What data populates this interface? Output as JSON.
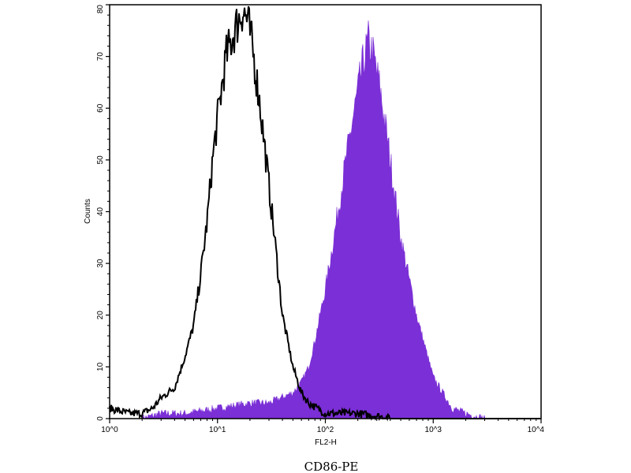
{
  "chart_data": {
    "type": "area",
    "title": "",
    "xlabel": "FL2-H",
    "ylabel": "Counts",
    "caption": "CD86-PE",
    "x_scale": "log",
    "xlim": [
      1,
      10000
    ],
    "ylim": [
      0,
      80
    ],
    "x_ticks": [
      "10^0",
      "10^1",
      "10^2",
      "10^3",
      "10^4"
    ],
    "y_ticks": [
      0,
      10,
      20,
      30,
      40,
      50,
      60,
      70,
      80
    ],
    "grid": false,
    "legend": "none",
    "series": [
      {
        "style": "line",
        "color": "#000000",
        "x": [
          1,
          1.5,
          2,
          2.5,
          3,
          4,
          5,
          6,
          7,
          8,
          9,
          10,
          12,
          15,
          17,
          19,
          21,
          25,
          30,
          35,
          40,
          50,
          60,
          70,
          100,
          200,
          300,
          400
        ],
        "y": [
          2,
          1,
          1,
          2,
          4,
          6,
          12,
          18,
          28,
          38,
          50,
          58,
          70,
          76,
          79,
          77,
          72,
          60,
          45,
          32,
          20,
          10,
          5,
          3,
          1,
          1,
          0.5,
          0
        ]
      },
      {
        "style": "filled",
        "color": "#7b2fd6",
        "x": [
          2,
          3,
          5,
          10,
          20,
          30,
          50,
          60,
          70,
          80,
          100,
          120,
          150,
          180,
          220,
          250,
          280,
          320,
          400,
          500,
          700,
          1000,
          1500,
          2000,
          3000
        ],
        "y": [
          0,
          1,
          1,
          2,
          3,
          3,
          5,
          7,
          10,
          15,
          25,
          35,
          48,
          58,
          68,
          73,
          70,
          64,
          50,
          35,
          20,
          8,
          2,
          1,
          0
        ]
      }
    ]
  }
}
